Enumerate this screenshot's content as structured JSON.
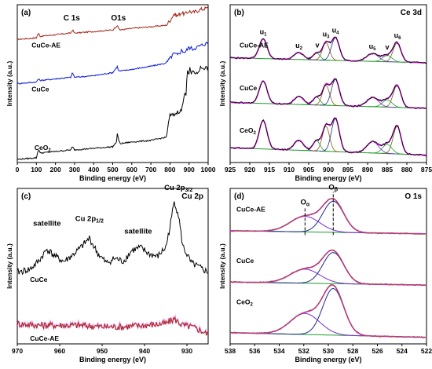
{
  "colors": {
    "black": "#000000",
    "blue": "#0b16d6",
    "red": "#a3261b",
    "magenta": "#e020e0",
    "olive": "#5e6b1c",
    "green": "#1f9a2b",
    "brown": "#8a5a1e",
    "purple": "#7a2ad8",
    "navy": "#1c2a8a",
    "gray": "#555555"
  },
  "chart_data": [
    {
      "panel": "(a)",
      "type": "line",
      "title": "",
      "xlabel": "Binding energy (eV)",
      "ylabel": "Intensity (a.u.)",
      "xlim": [
        0,
        1000
      ],
      "xticks": [
        0,
        100,
        200,
        300,
        400,
        500,
        600,
        700,
        800,
        900,
        1000
      ],
      "annotations": [
        "C 1s",
        "O1s"
      ],
      "series": [
        {
          "name": "CuCe-AE",
          "color": "red",
          "x": [
            0,
            100,
            110,
            120,
            200,
            280,
            290,
            300,
            400,
            500,
            525,
            530,
            540,
            600,
            700,
            780,
            800,
            820,
            840,
            860,
            880,
            900,
            920,
            940,
            960,
            1000
          ],
          "y": [
            0.78,
            0.79,
            0.82,
            0.8,
            0.81,
            0.82,
            0.84,
            0.82,
            0.83,
            0.84,
            0.87,
            0.85,
            0.84,
            0.85,
            0.86,
            0.87,
            0.9,
            0.94,
            0.93,
            0.95,
            0.94,
            0.96,
            0.95,
            0.96,
            0.97,
            0.98
          ]
        },
        {
          "name": "CuCe",
          "color": "blue",
          "x": [
            0,
            100,
            110,
            120,
            200,
            280,
            290,
            300,
            400,
            500,
            525,
            530,
            540,
            600,
            700,
            780,
            800,
            820,
            840,
            860,
            880,
            900,
            920,
            940,
            960,
            1000
          ],
          "y": [
            0.5,
            0.51,
            0.53,
            0.52,
            0.53,
            0.54,
            0.57,
            0.54,
            0.55,
            0.57,
            0.61,
            0.58,
            0.58,
            0.59,
            0.61,
            0.63,
            0.66,
            0.69,
            0.68,
            0.71,
            0.7,
            0.73,
            0.72,
            0.73,
            0.74,
            0.76
          ]
        },
        {
          "name": "CeO2",
          "color": "black",
          "x": [
            0,
            100,
            110,
            115,
            120,
            200,
            280,
            290,
            300,
            400,
            500,
            520,
            525,
            530,
            540,
            600,
            700,
            780,
            790,
            800,
            820,
            840,
            860,
            880,
            885,
            890,
            900,
            905,
            910,
            920,
            940,
            960,
            1000
          ],
          "y": [
            0.02,
            0.03,
            0.08,
            0.08,
            0.06,
            0.07,
            0.08,
            0.1,
            0.08,
            0.09,
            0.1,
            0.13,
            0.2,
            0.14,
            0.12,
            0.13,
            0.14,
            0.16,
            0.23,
            0.3,
            0.3,
            0.32,
            0.33,
            0.45,
            0.43,
            0.6,
            0.55,
            0.62,
            0.55,
            0.58,
            0.56,
            0.6,
            0.6
          ]
        }
      ],
      "labels": [
        {
          "text": "CuCe-AE",
          "x": 75,
          "y": 0.73
        },
        {
          "text": "CuCe",
          "x": 75,
          "y": 0.45
        },
        {
          "text": "CeO",
          "sub": "2",
          "x": 90,
          "y": 0.08
        }
      ],
      "peak_labels": [
        {
          "text": "C 1s",
          "x": 285,
          "y": 0.9
        },
        {
          "text": "O1s",
          "x": 530,
          "y": 0.9
        }
      ]
    },
    {
      "panel": "(b)",
      "type": "line",
      "title": "Ce 3d",
      "xlabel": "Binding energy (eV)",
      "ylabel": "Intensity (a.u.)",
      "xlim": [
        925,
        875
      ],
      "xticks": [
        925,
        920,
        915,
        910,
        905,
        900,
        895,
        890,
        885,
        880,
        875
      ],
      "samples": [
        {
          "name": "CuCe-AE",
          "offset": 0.62,
          "scale": 0.2
        },
        {
          "name": "CuCe",
          "offset": 0.33,
          "scale": 0.23
        },
        {
          "name": "CeO",
          "sub": "2",
          "offset": 0.03,
          "scale": 0.29
        }
      ],
      "peaks": [
        {
          "center": 916.6,
          "amp": 0.62,
          "width": 1.0
        },
        {
          "center": 907.5,
          "amp": 0.22,
          "width": 1.2
        },
        {
          "center": 903.0,
          "amp": 0.22,
          "width": 0.9
        },
        {
          "center": 900.6,
          "amp": 0.55,
          "width": 0.9
        },
        {
          "center": 898.2,
          "amp": 0.72,
          "width": 1.0
        },
        {
          "center": 888.7,
          "amp": 0.25,
          "width": 1.5
        },
        {
          "center": 885.0,
          "amp": 0.2,
          "width": 1.2
        },
        {
          "center": 882.5,
          "amp": 0.6,
          "width": 1.0
        }
      ],
      "peak_labels": [
        {
          "text": "u",
          "sub": "1",
          "x": 916.6
        },
        {
          "text": "u",
          "sub": "2",
          "x": 907.5
        },
        {
          "text": "v",
          "sub": "",
          "x": 902.8
        },
        {
          "text": "u",
          "sub": "3",
          "x": 900.6
        },
        {
          "text": "u",
          "sub": "4",
          "x": 898.2
        },
        {
          "text": "u",
          "sub": "5",
          "x": 888.8
        },
        {
          "text": "v",
          "sub": "",
          "x": 885.0
        },
        {
          "text": "u",
          "sub": "6",
          "x": 882.4
        }
      ]
    },
    {
      "panel": "(c)",
      "type": "line",
      "title": "Cu 2p",
      "xlabel": "Binding energy (eV)",
      "ylabel": "Intensity (a.u.)",
      "xlim": [
        970,
        925
      ],
      "xticks": [
        970,
        960,
        950,
        940,
        930
      ],
      "series": [
        {
          "name": "CuCe",
          "color": "black",
          "x": [
            970,
            967,
            965,
            963,
            961,
            959,
            957,
            955,
            953,
            951,
            949,
            947,
            945,
            943,
            941,
            939,
            937,
            935,
            934,
            933,
            932,
            931,
            929,
            927,
            925
          ],
          "y": [
            0.46,
            0.48,
            0.53,
            0.61,
            0.56,
            0.53,
            0.57,
            0.62,
            0.68,
            0.58,
            0.52,
            0.55,
            0.53,
            0.6,
            0.62,
            0.58,
            0.56,
            0.62,
            0.75,
            0.92,
            0.83,
            0.63,
            0.52,
            0.49,
            0.46
          ]
        },
        {
          "name": "CuCe-AE",
          "color": "red",
          "x": [
            970,
            965,
            960,
            955,
            950,
            945,
            940,
            935,
            933,
            931,
            929,
            927,
            925
          ],
          "y": [
            0.13,
            0.12,
            0.12,
            0.12,
            0.11,
            0.11,
            0.12,
            0.13,
            0.16,
            0.12,
            0.11,
            0.09,
            0.06
          ]
        }
      ],
      "labels": [
        {
          "text": "CuCe",
          "x": 967,
          "y": 0.4
        },
        {
          "text": "CuCe-AE",
          "x": 967,
          "y": 0.02
        }
      ],
      "peak_labels": [
        {
          "text": "satellite",
          "sub": "",
          "x": 963.0,
          "y": 0.76
        },
        {
          "text": "Cu 2p",
          "sub": "1/2",
          "x": 953.0,
          "y": 0.79
        },
        {
          "text": "satellite",
          "sub": "",
          "x": 941.5,
          "y": 0.71
        },
        {
          "text": "Cu 2p",
          "sub": "3/2",
          "x": 932.0,
          "y": 0.99
        }
      ]
    },
    {
      "panel": "(d)",
      "type": "line",
      "title": "O 1s",
      "xlabel": "Binding energy (eV)",
      "ylabel": "Intensity (a.u.)",
      "xlim": [
        538,
        522
      ],
      "xticks": [
        538,
        536,
        534,
        532,
        530,
        528,
        526,
        524,
        522
      ],
      "samples": [
        {
          "name": "CuCe-AE",
          "offset": 0.7,
          "scale": 0.2,
          "alpha_amp": 0.5,
          "beta_amp": 1.0
        },
        {
          "name": "CuCe",
          "offset": 0.37,
          "scale": 0.2,
          "alpha_amp": 0.45,
          "beta_amp": 1.0
        },
        {
          "name": "CeO",
          "sub": "2",
          "offset": 0.03,
          "scale": 0.3,
          "alpha_amp": 0.45,
          "beta_amp": 1.0
        }
      ],
      "peaks": [
        {
          "center": 529.6,
          "width": 0.85
        },
        {
          "center": 531.9,
          "width": 1.2
        }
      ],
      "peak_labels": [
        {
          "text": "O",
          "sub": "α",
          "x": 531.9
        },
        {
          "text": "O",
          "sub": "β",
          "x": 529.6
        }
      ]
    }
  ]
}
